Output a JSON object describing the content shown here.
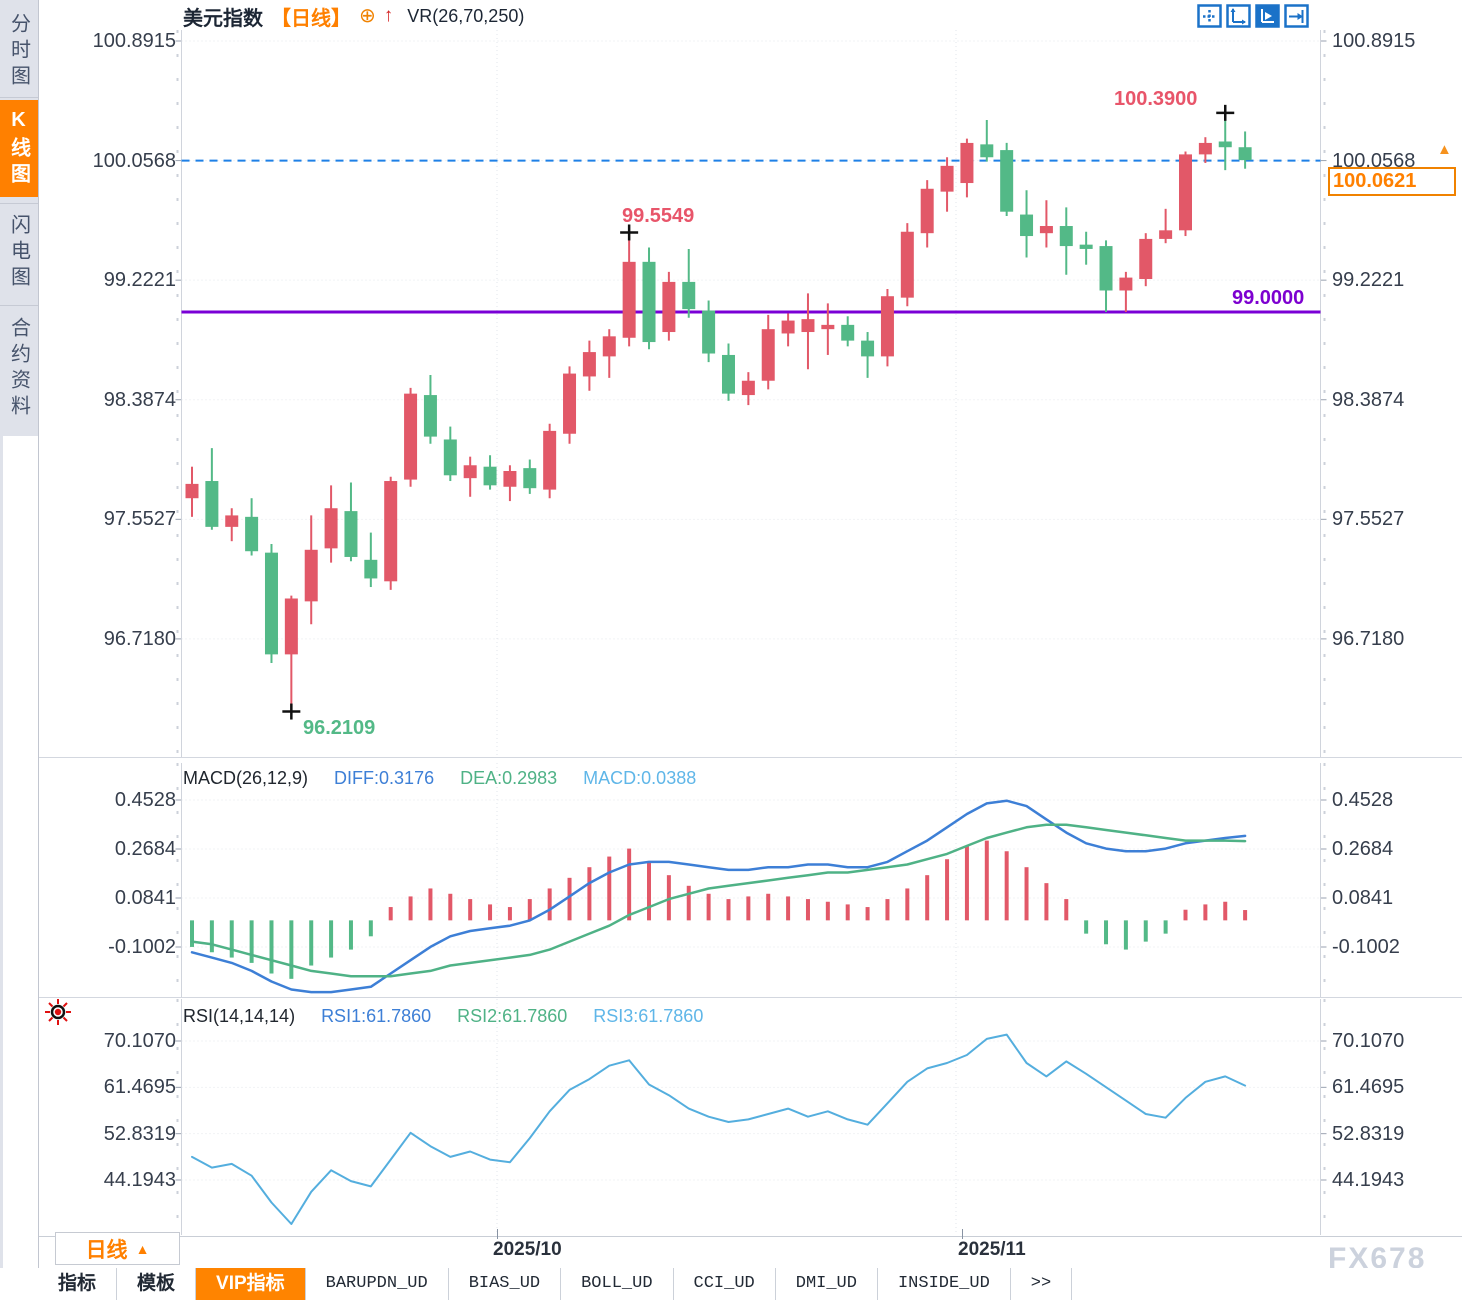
{
  "app": {
    "watermark": "FX678"
  },
  "sidebar": {
    "items": [
      {
        "label": "分时图",
        "active": false
      },
      {
        "label": "K线图",
        "active": true
      },
      {
        "label": "闪电图",
        "active": false
      },
      {
        "label": "合约资料",
        "active": false
      }
    ]
  },
  "header": {
    "symbol": "美元指数",
    "period_tag": "【日线】",
    "plus_icon": "⊕",
    "up_arrow_icon": "↑",
    "indicator": "VR(26,70,250)",
    "tools": [
      {
        "name": "crosshair-tool",
        "active": false
      },
      {
        "name": "axis-range-tool",
        "active": false
      },
      {
        "name": "axis-track-tool",
        "active": true
      },
      {
        "name": "pan-right-tool",
        "active": false
      }
    ]
  },
  "axis": {
    "main_labels": [
      "100.8915",
      "100.0568",
      "99.2221",
      "98.3874",
      "97.5527",
      "96.7180"
    ],
    "macd_labels": [
      "0.4528",
      "0.2684",
      "0.0841",
      "-0.1002"
    ],
    "rsi_labels": [
      "70.1070",
      "61.4695",
      "52.8319",
      "44.1943"
    ],
    "x_labels": [
      "2025/10",
      "2025/11"
    ]
  },
  "annotations": {
    "high": "100.3900",
    "swing_high": "99.5549",
    "low": "96.2109",
    "support": "99.0000",
    "price_tag": "100.0621",
    "tag_arrow": "▲"
  },
  "macd_header": {
    "title": "MACD(26,12,9)",
    "diff": "DIFF:0.3176",
    "dea": "DEA:0.2983",
    "macd": "MACD:0.0388"
  },
  "rsi_header": {
    "title": "RSI(14,14,14)",
    "rsi1": "RSI1:61.7860",
    "rsi2": "RSI2:61.7860",
    "rsi3": "RSI3:61.7860"
  },
  "footer": {
    "period_label": "日线",
    "period_arrow": "▲",
    "tabs": [
      {
        "label": "指标",
        "active": false,
        "mono": false
      },
      {
        "label": "模板",
        "active": false,
        "mono": false
      },
      {
        "label": "VIP指标",
        "active": true,
        "mono": false
      },
      {
        "label": "BARUPDN_UD",
        "active": false,
        "mono": true
      },
      {
        "label": "BIAS_UD",
        "active": false,
        "mono": true
      },
      {
        "label": "BOLL_UD",
        "active": false,
        "mono": true
      },
      {
        "label": "CCI_UD",
        "active": false,
        "mono": true
      },
      {
        "label": "DMI_UD",
        "active": false,
        "mono": true
      },
      {
        "label": "INSIDE_UD",
        "active": false,
        "mono": true
      },
      {
        "label": ">>",
        "active": false,
        "mono": true
      }
    ]
  },
  "colors": {
    "up": "#e25868",
    "down": "#53b987",
    "dashed_line": "#1e80e6",
    "support_line": "#7a00d6",
    "accent_orange": "#ff8000",
    "diff_blue": "#3d7fd6",
    "dea_green": "#4fb286",
    "macd_lightblue": "#5fb6e8",
    "rsi_blue": "#54aede",
    "grid": "#e4e7ec",
    "border": "#d0d4dc",
    "tick": "#9aa2b0",
    "axis_text": "#363e4c",
    "cross": "#111111"
  },
  "chart_data": [
    {
      "type": "candlestick",
      "title": "美元指数 日线 (USD Index daily)",
      "y_ticks": [
        100.8915,
        100.0568,
        99.2221,
        98.3874,
        97.5527,
        96.718
      ],
      "x_axis_labels": [
        "2025/10",
        "2025/11"
      ],
      "markers": {
        "dashed_level": 100.0568,
        "support_line": 99.0,
        "last_price": 100.0621,
        "points": [
          {
            "candle": 5,
            "price": 96.2109,
            "label": "96.2109"
          },
          {
            "candle": 22,
            "price": 99.5549,
            "label": "99.5549"
          },
          {
            "candle": 52,
            "price": 100.39,
            "label": "100.3900"
          }
        ]
      },
      "candles_ohlc": [
        [
          97.7,
          97.92,
          97.57,
          97.8
        ],
        [
          97.82,
          98.05,
          97.48,
          97.5
        ],
        [
          97.5,
          97.63,
          97.4,
          97.58
        ],
        [
          97.57,
          97.7,
          97.3,
          97.33
        ],
        [
          97.32,
          97.38,
          96.55,
          96.61
        ],
        [
          96.61,
          97.02,
          96.2109,
          97.0
        ],
        [
          96.98,
          97.58,
          96.82,
          97.34
        ],
        [
          97.35,
          97.79,
          97.25,
          97.63
        ],
        [
          97.61,
          97.81,
          97.26,
          97.29
        ],
        [
          97.27,
          97.46,
          97.08,
          97.14
        ],
        [
          97.12,
          97.85,
          97.06,
          97.82
        ],
        [
          97.83,
          98.47,
          97.78,
          98.43
        ],
        [
          98.42,
          98.56,
          98.08,
          98.13
        ],
        [
          98.11,
          98.2,
          97.82,
          97.86
        ],
        [
          97.84,
          97.99,
          97.71,
          97.93
        ],
        [
          97.92,
          98.0,
          97.76,
          97.79
        ],
        [
          97.78,
          97.93,
          97.68,
          97.89
        ],
        [
          97.91,
          97.97,
          97.73,
          97.77
        ],
        [
          97.76,
          98.22,
          97.7,
          98.17
        ],
        [
          98.15,
          98.62,
          98.08,
          98.57
        ],
        [
          98.55,
          98.8,
          98.45,
          98.72
        ],
        [
          98.69,
          98.88,
          98.54,
          98.83
        ],
        [
          98.82,
          99.5549,
          98.76,
          99.35
        ],
        [
          99.35,
          99.45,
          98.74,
          98.79
        ],
        [
          98.86,
          99.28,
          98.8,
          99.21
        ],
        [
          99.21,
          99.44,
          98.96,
          99.02
        ],
        [
          99.01,
          99.08,
          98.65,
          98.71
        ],
        [
          98.7,
          98.78,
          98.38,
          98.43
        ],
        [
          98.42,
          98.58,
          98.35,
          98.52
        ],
        [
          98.52,
          98.98,
          98.46,
          98.88
        ],
        [
          98.85,
          98.99,
          98.76,
          98.94
        ],
        [
          98.86,
          99.13,
          98.6,
          98.95
        ],
        [
          98.88,
          99.06,
          98.7,
          98.91
        ],
        [
          98.91,
          98.97,
          98.76,
          98.8
        ],
        [
          98.8,
          98.86,
          98.54,
          98.69
        ],
        [
          98.69,
          99.16,
          98.62,
          99.11
        ],
        [
          99.1,
          99.62,
          99.04,
          99.56
        ],
        [
          99.55,
          99.92,
          99.45,
          99.86
        ],
        [
          99.84,
          100.08,
          99.7,
          100.02
        ],
        [
          99.9,
          100.21,
          99.8,
          100.18
        ],
        [
          100.17,
          100.34,
          100.05,
          100.08
        ],
        [
          100.13,
          100.18,
          99.67,
          99.7
        ],
        [
          99.68,
          99.85,
          99.38,
          99.53
        ],
        [
          99.55,
          99.78,
          99.45,
          99.6
        ],
        [
          99.6,
          99.73,
          99.26,
          99.46
        ],
        [
          99.47,
          99.56,
          99.33,
          99.44
        ],
        [
          99.46,
          99.5,
          99.0,
          99.15
        ],
        [
          99.15,
          99.28,
          99.0,
          99.24
        ],
        [
          99.23,
          99.55,
          99.18,
          99.51
        ],
        [
          99.51,
          99.72,
          99.48,
          99.57
        ],
        [
          99.57,
          100.12,
          99.53,
          100.1
        ],
        [
          100.1,
          100.22,
          100.04,
          100.18
        ],
        [
          100.19,
          100.39,
          99.99,
          100.15
        ],
        [
          100.15,
          100.26,
          100.0,
          100.06
        ]
      ]
    },
    {
      "type": "bar",
      "title": "MACD(26,12,9)",
      "y_ticks": [
        0.4528,
        0.2684,
        0.0841,
        -0.1002
      ],
      "series": [
        {
          "name": "DIFF",
          "last": 0.3176,
          "values": [
            -0.12,
            -0.14,
            -0.16,
            -0.19,
            -0.23,
            -0.26,
            -0.27,
            -0.27,
            -0.26,
            -0.25,
            -0.2,
            -0.15,
            -0.1,
            -0.06,
            -0.04,
            -0.03,
            -0.02,
            0.0,
            0.04,
            0.09,
            0.14,
            0.18,
            0.21,
            0.22,
            0.22,
            0.21,
            0.2,
            0.19,
            0.19,
            0.2,
            0.2,
            0.21,
            0.21,
            0.2,
            0.2,
            0.22,
            0.26,
            0.3,
            0.35,
            0.4,
            0.44,
            0.45,
            0.43,
            0.38,
            0.33,
            0.29,
            0.27,
            0.26,
            0.26,
            0.27,
            0.29,
            0.3,
            0.31,
            0.3176
          ]
        },
        {
          "name": "DEA",
          "last": 0.2983,
          "values": [
            -0.08,
            -0.09,
            -0.11,
            -0.13,
            -0.15,
            -0.17,
            -0.19,
            -0.2,
            -0.21,
            -0.21,
            -0.21,
            -0.2,
            -0.19,
            -0.17,
            -0.16,
            -0.15,
            -0.14,
            -0.13,
            -0.11,
            -0.08,
            -0.05,
            -0.02,
            0.02,
            0.05,
            0.08,
            0.1,
            0.12,
            0.13,
            0.14,
            0.15,
            0.16,
            0.17,
            0.18,
            0.18,
            0.19,
            0.2,
            0.21,
            0.23,
            0.25,
            0.28,
            0.31,
            0.33,
            0.35,
            0.36,
            0.36,
            0.35,
            0.34,
            0.33,
            0.32,
            0.31,
            0.3,
            0.3,
            0.3,
            0.2983
          ]
        },
        {
          "name": "MACD_HIST",
          "last": 0.0388,
          "values": [
            -0.1,
            -0.12,
            -0.14,
            -0.16,
            -0.2,
            -0.22,
            -0.17,
            -0.14,
            -0.11,
            -0.06,
            0.05,
            0.09,
            0.12,
            0.1,
            0.08,
            0.06,
            0.05,
            0.08,
            0.12,
            0.16,
            0.2,
            0.24,
            0.27,
            0.22,
            0.17,
            0.13,
            0.1,
            0.08,
            0.09,
            0.1,
            0.09,
            0.08,
            0.07,
            0.06,
            0.05,
            0.08,
            0.12,
            0.17,
            0.23,
            0.28,
            0.3,
            0.26,
            0.2,
            0.14,
            0.08,
            -0.05,
            -0.09,
            -0.11,
            -0.08,
            -0.05,
            0.04,
            0.06,
            0.07,
            0.0388
          ]
        }
      ]
    },
    {
      "type": "line",
      "title": "RSI(14,14,14)",
      "y_ticks": [
        70.107,
        61.4695,
        52.8319,
        44.1943
      ],
      "series": [
        {
          "name": "RSI1",
          "last": 61.786,
          "values": [
            48.5,
            46.5,
            47.2,
            45.0,
            40.0,
            36.0,
            42.0,
            46.0,
            44.0,
            43.0,
            48.0,
            53.0,
            50.5,
            48.5,
            49.5,
            48.0,
            47.5,
            52.0,
            57.0,
            61.0,
            63.0,
            65.5,
            66.5,
            62.0,
            60.0,
            57.5,
            56.0,
            55.0,
            55.5,
            56.5,
            57.5,
            56.0,
            57.0,
            55.5,
            54.5,
            58.5,
            62.5,
            65.0,
            66.0,
            67.5,
            70.5,
            71.3,
            66.0,
            63.5,
            66.3,
            64.0,
            61.5,
            59.0,
            56.5,
            55.8,
            59.5,
            62.5,
            63.5,
            61.786
          ]
        },
        {
          "name": "RSI2",
          "last": 61.786,
          "values_same_as": "RSI1"
        },
        {
          "name": "RSI3",
          "last": 61.786,
          "values_same_as": "RSI1"
        }
      ]
    }
  ]
}
